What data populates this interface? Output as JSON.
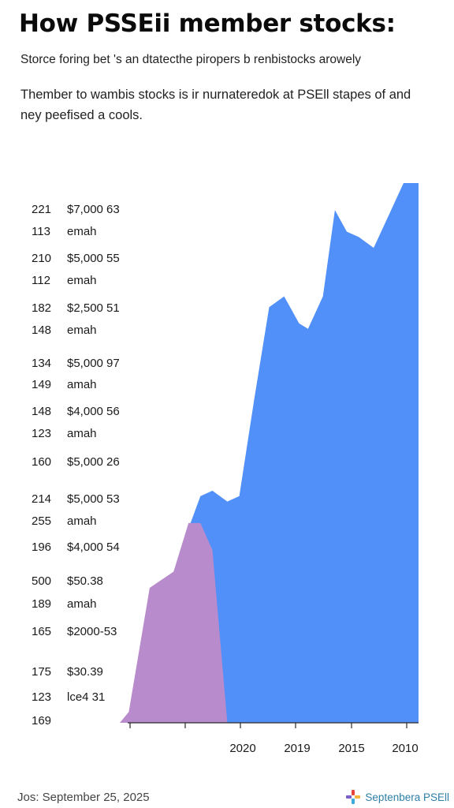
{
  "header": {
    "title": "How PSSEii member stocks:",
    "subtitle": "Storce foring bet 's an dtatecthe piropers b renbistocks arowely",
    "description_lines": [
      "Thember to wambis stocks is ir nurnateredok at PSEll stapes of and",
      "ney peefised a cools."
    ]
  },
  "footer": {
    "date_text": "Jos: September 25, 2025",
    "brand_text": "Septenbera PSEll",
    "brand_colors": [
      "#e8463a",
      "#f5b43c",
      "#3fa9d8",
      "#7a5fc8"
    ]
  },
  "chart_data": {
    "type": "area",
    "y_labels": [
      {
        "num": "221",
        "val": "$7,000 63"
      },
      {
        "num": "113",
        "val": "emah"
      },
      {
        "num": "210",
        "val": "$5,000 55"
      },
      {
        "num": "112",
        "val": "emah"
      },
      {
        "num": "182",
        "val": "$2,500 51"
      },
      {
        "num": "148",
        "val": "emah"
      },
      {
        "num": "134",
        "val": "$5,000 97"
      },
      {
        "num": "149",
        "val": "amah"
      },
      {
        "num": "148",
        "val": "$4,000 56"
      },
      {
        "num": "123",
        "val": "amah"
      },
      {
        "num": "160",
        "val": "$5,000 26"
      },
      {
        "num": "214",
        "val": "$5,000 53"
      },
      {
        "num": "255",
        "val": "amah"
      },
      {
        "num": "196",
        "val": "$4,000 54"
      },
      {
        "num": "500",
        "val": "$50.38"
      },
      {
        "num": "189",
        "val": "amah"
      },
      {
        "num": "165",
        "val": "$2000-53"
      },
      {
        "num": "175",
        "val": "$30.39"
      },
      {
        "num": "123",
        "val": "lce4 31"
      },
      {
        "num": "169",
        "val": ""
      }
    ],
    "x_tick_labels": [
      "2020",
      "2019",
      "2015",
      "2010"
    ],
    "x": [
      0,
      0.03,
      0.1,
      0.18,
      0.23,
      0.27,
      0.31,
      0.36,
      0.4,
      0.45,
      0.5,
      0.55,
      0.6,
      0.63,
      0.68,
      0.72,
      0.76,
      0.8,
      0.85,
      0.9,
      0.95,
      1.0
    ],
    "series": [
      {
        "color": "#5090f8",
        "values": [
          0,
          0,
          0.002,
          0.005,
          0.36,
          0.42,
          0.43,
          0.41,
          0.42,
          0.6,
          0.77,
          0.79,
          0.74,
          0.73,
          0.79,
          0.95,
          0.91,
          0.9,
          0.88,
          0.94,
          1.0,
          1.0
        ]
      },
      {
        "color": "#b88bcc",
        "values": [
          0,
          0.02,
          0.25,
          0.28,
          0.37,
          0.37,
          0.32,
          0,
          0,
          0,
          0,
          0,
          0,
          0,
          0,
          0,
          0,
          0,
          0,
          0,
          0,
          0
        ]
      }
    ],
    "grid": false,
    "legend": "none"
  }
}
